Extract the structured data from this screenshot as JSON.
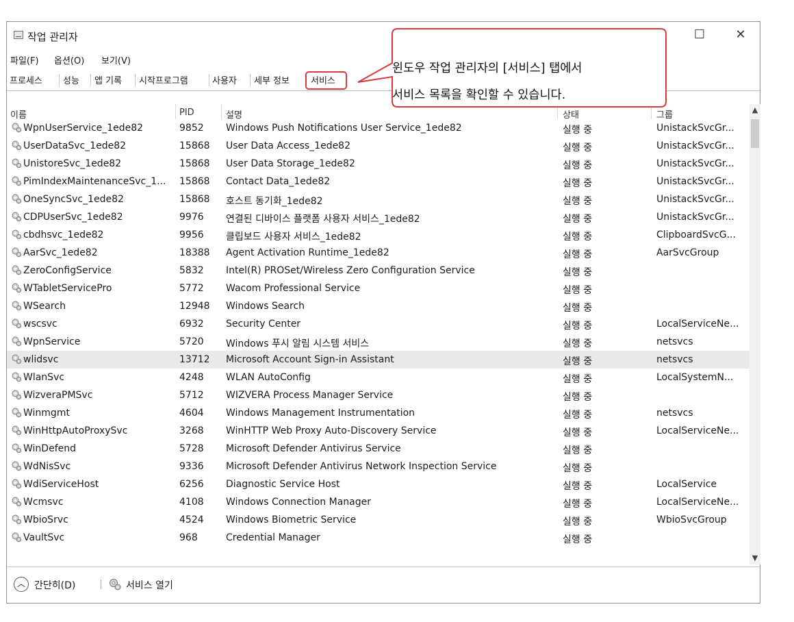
{
  "window": {
    "title": "작업 관리자",
    "minimize": "—",
    "maximize": "☐",
    "close": "✕"
  },
  "menu": [
    "파일(F)",
    "옵션(O)",
    "보기(V)"
  ],
  "tabs": [
    "프로세스",
    "성능",
    "앱 기록",
    "시작프로그램",
    "사용자",
    "세부 정보",
    "서비스"
  ],
  "active_tab": "서비스",
  "callout": {
    "line1": "윈도우 작업 관리자의 [서비스] 탭에서",
    "line2": "서비스 목록을 확인할 수 있습니다."
  },
  "columns": {
    "name": "이름",
    "pid": "PID",
    "desc": "설명",
    "status": "상태",
    "group": "그룹"
  },
  "rows": [
    {
      "name": "WpnUserService_1ede82",
      "pid": "9852",
      "desc": "Windows Push Notifications User Service_1ede82",
      "status": "실행 중",
      "group": "UnistackSvcGr..."
    },
    {
      "name": "UserDataSvc_1ede82",
      "pid": "15868",
      "desc": "User Data Access_1ede82",
      "status": "실행 중",
      "group": "UnistackSvcGr..."
    },
    {
      "name": "UnistoreSvc_1ede82",
      "pid": "15868",
      "desc": "User Data Storage_1ede82",
      "status": "실행 중",
      "group": "UnistackSvcGr..."
    },
    {
      "name": "PimIndexMaintenanceSvc_1...",
      "pid": "15868",
      "desc": "Contact Data_1ede82",
      "status": "실행 중",
      "group": "UnistackSvcGr..."
    },
    {
      "name": "OneSyncSvc_1ede82",
      "pid": "15868",
      "desc": "호스트 동기화_1ede82",
      "status": "실행 중",
      "group": "UnistackSvcGr..."
    },
    {
      "name": "CDPUserSvc_1ede82",
      "pid": "9976",
      "desc": "연결된 디바이스 플랫폼 사용자 서비스_1ede82",
      "status": "실행 중",
      "group": "UnistackSvcGr..."
    },
    {
      "name": "cbdhsvc_1ede82",
      "pid": "9956",
      "desc": "클립보드 사용자 서비스_1ede82",
      "status": "실행 중",
      "group": "ClipboardSvcG..."
    },
    {
      "name": "AarSvc_1ede82",
      "pid": "18388",
      "desc": "Agent Activation Runtime_1ede82",
      "status": "실행 중",
      "group": "AarSvcGroup"
    },
    {
      "name": "ZeroConfigService",
      "pid": "5832",
      "desc": "Intel(R) PROSet/Wireless Zero Configuration Service",
      "status": "실행 중",
      "group": ""
    },
    {
      "name": "WTabletServicePro",
      "pid": "5772",
      "desc": "Wacom Professional Service",
      "status": "실행 중",
      "group": ""
    },
    {
      "name": "WSearch",
      "pid": "12948",
      "desc": "Windows Search",
      "status": "실행 중",
      "group": ""
    },
    {
      "name": "wscsvc",
      "pid": "6932",
      "desc": "Security Center",
      "status": "실행 중",
      "group": "LocalServiceNe..."
    },
    {
      "name": "WpnService",
      "pid": "5720",
      "desc": "Windows 푸시 알림 시스템 서비스",
      "status": "실행 중",
      "group": "netsvcs"
    },
    {
      "name": "wlidsvc",
      "pid": "13712",
      "desc": "Microsoft Account Sign-in Assistant",
      "status": "실행 중",
      "group": "netsvcs"
    },
    {
      "name": "WlanSvc",
      "pid": "4248",
      "desc": "WLAN AutoConfig",
      "status": "실행 중",
      "group": "LocalSystemN..."
    },
    {
      "name": "WizveraPMSvc",
      "pid": "5712",
      "desc": "WIZVERA Process Manager Service",
      "status": "실행 중",
      "group": ""
    },
    {
      "name": "Winmgmt",
      "pid": "4604",
      "desc": "Windows Management Instrumentation",
      "status": "실행 중",
      "group": "netsvcs"
    },
    {
      "name": "WinHttpAutoProxySvc",
      "pid": "3268",
      "desc": "WinHTTP Web Proxy Auto-Discovery Service",
      "status": "실행 중",
      "group": "LocalServiceNe..."
    },
    {
      "name": "WinDefend",
      "pid": "5728",
      "desc": "Microsoft Defender Antivirus Service",
      "status": "실행 중",
      "group": ""
    },
    {
      "name": "WdNisSvc",
      "pid": "9336",
      "desc": "Microsoft Defender Antivirus Network Inspection Service",
      "status": "실행 중",
      "group": ""
    },
    {
      "name": "WdiServiceHost",
      "pid": "6256",
      "desc": "Diagnostic Service Host",
      "status": "실행 중",
      "group": "LocalService"
    },
    {
      "name": "Wcmsvc",
      "pid": "4108",
      "desc": "Windows Connection Manager",
      "status": "실행 중",
      "group": "LocalServiceNe..."
    },
    {
      "name": "WbioSrvc",
      "pid": "4524",
      "desc": "Windows Biometric Service",
      "status": "실행 중",
      "group": "WbioSvcGroup"
    },
    {
      "name": "VaultSvc",
      "pid": "968",
      "desc": "Credential Manager",
      "status": "실행 중",
      "group": ""
    }
  ],
  "selected_row": 13,
  "footer": {
    "collapse": "간단히(D)",
    "open_services": "서비스 열기"
  },
  "colors": {
    "highlight": "#d93a3a",
    "selected_row": "#e9e9e9"
  }
}
